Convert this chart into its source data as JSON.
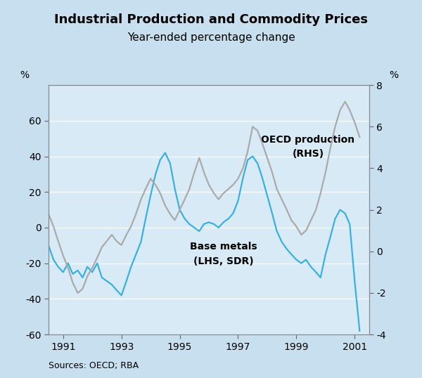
{
  "title": "Industrial Production and Commodity Prices",
  "subtitle": "Year-ended percentage change",
  "source": "Sources: OECD; RBA",
  "background_color": "#c8dff0",
  "plot_bg_color": "#d8eaf5",
  "lhs_label": "%",
  "rhs_label": "%",
  "ylim_lhs": [
    -60,
    80
  ],
  "ylim_rhs": [
    -4,
    8
  ],
  "yticks_lhs": [
    -60,
    -40,
    -20,
    0,
    20,
    40,
    60
  ],
  "yticks_rhs": [
    -4,
    -2,
    0,
    2,
    4,
    6,
    8
  ],
  "xticks": [
    1991,
    1993,
    1995,
    1997,
    1999,
    2001
  ],
  "xlim": [
    1990.5,
    2001.5
  ],
  "base_metals_color": "#3ab0e0",
  "oecd_color": "#aaaaaa",
  "base_metals_label_line1": "Base metals",
  "base_metals_label_line2": "(LHS, SDR)",
  "oecd_label_line1": "OECD production",
  "oecd_label_line2": "(RHS)",
  "base_metals_x": [
    1990.5,
    1990.67,
    1990.83,
    1991.0,
    1991.17,
    1991.33,
    1991.5,
    1991.67,
    1991.83,
    1992.0,
    1992.17,
    1992.33,
    1992.5,
    1992.67,
    1992.83,
    1993.0,
    1993.17,
    1993.33,
    1993.5,
    1993.67,
    1993.83,
    1994.0,
    1994.17,
    1994.33,
    1994.5,
    1994.67,
    1994.83,
    1995.0,
    1995.17,
    1995.33,
    1995.5,
    1995.67,
    1995.83,
    1996.0,
    1996.17,
    1996.33,
    1996.5,
    1996.67,
    1996.83,
    1997.0,
    1997.17,
    1997.33,
    1997.5,
    1997.67,
    1997.83,
    1998.0,
    1998.17,
    1998.33,
    1998.5,
    1998.67,
    1998.83,
    1999.0,
    1999.17,
    1999.33,
    1999.5,
    1999.67,
    1999.83,
    2000.0,
    2000.17,
    2000.33,
    2000.5,
    2000.67,
    2000.83,
    2001.0,
    2001.17
  ],
  "base_metals_y": [
    -10,
    -18,
    -22,
    -25,
    -20,
    -26,
    -24,
    -28,
    -22,
    -25,
    -20,
    -28,
    -30,
    -32,
    -35,
    -38,
    -30,
    -22,
    -15,
    -8,
    5,
    18,
    30,
    38,
    42,
    36,
    22,
    10,
    5,
    2,
    0,
    -2,
    2,
    3,
    2,
    0,
    3,
    5,
    8,
    15,
    28,
    38,
    40,
    36,
    28,
    18,
    8,
    -2,
    -8,
    -12,
    -15,
    -18,
    -20,
    -18,
    -22,
    -25,
    -28,
    -15,
    -5,
    5,
    10,
    8,
    2,
    -30,
    -58
  ],
  "oecd_x": [
    1990.5,
    1990.67,
    1990.83,
    1991.0,
    1991.17,
    1991.33,
    1991.5,
    1991.67,
    1991.83,
    1992.0,
    1992.17,
    1992.33,
    1992.5,
    1992.67,
    1992.83,
    1993.0,
    1993.17,
    1993.33,
    1993.5,
    1993.67,
    1993.83,
    1994.0,
    1994.17,
    1994.33,
    1994.5,
    1994.67,
    1994.83,
    1995.0,
    1995.17,
    1995.33,
    1995.5,
    1995.67,
    1995.83,
    1996.0,
    1996.17,
    1996.33,
    1996.5,
    1996.67,
    1996.83,
    1997.0,
    1997.17,
    1997.33,
    1997.5,
    1997.67,
    1997.83,
    1998.0,
    1998.17,
    1998.33,
    1998.5,
    1998.67,
    1998.83,
    1999.0,
    1999.17,
    1999.33,
    1999.5,
    1999.67,
    1999.83,
    2000.0,
    2000.17,
    2000.33,
    2000.5,
    2000.67,
    2000.83,
    2001.0,
    2001.17
  ],
  "oecd_y_rhs": [
    1.8,
    1.2,
    0.5,
    -0.2,
    -0.8,
    -1.5,
    -2.0,
    -1.8,
    -1.2,
    -0.8,
    -0.3,
    0.2,
    0.5,
    0.8,
    0.5,
    0.3,
    0.8,
    1.2,
    1.8,
    2.5,
    3.0,
    3.5,
    3.2,
    2.8,
    2.2,
    1.8,
    1.5,
    2.0,
    2.5,
    3.0,
    3.8,
    4.5,
    3.8,
    3.2,
    2.8,
    2.5,
    2.8,
    3.0,
    3.2,
    3.5,
    4.0,
    4.8,
    6.0,
    5.8,
    5.2,
    4.5,
    3.8,
    3.0,
    2.5,
    2.0,
    1.5,
    1.2,
    0.8,
    1.0,
    1.5,
    2.0,
    2.8,
    3.8,
    5.0,
    6.0,
    6.8,
    7.2,
    6.8,
    6.2,
    5.5
  ]
}
